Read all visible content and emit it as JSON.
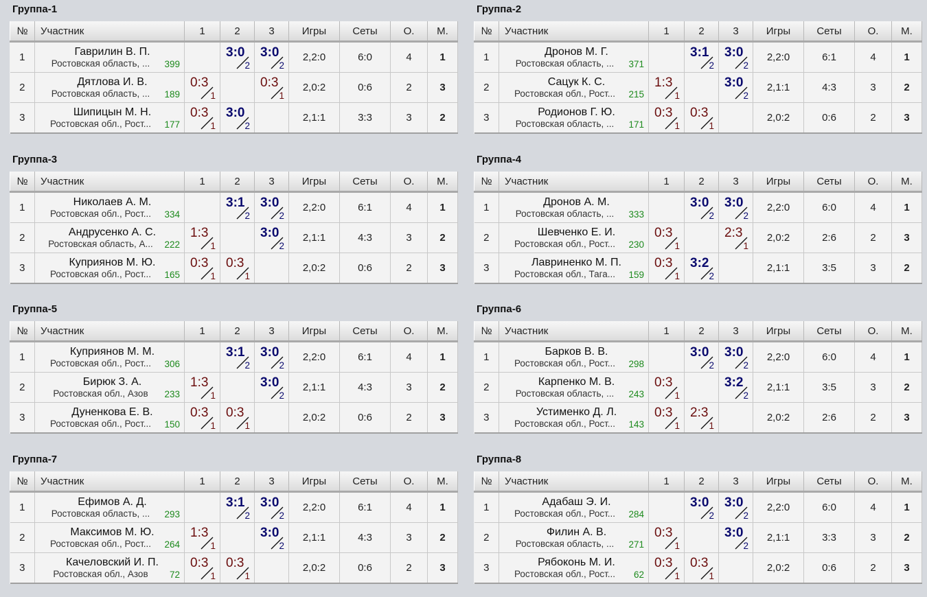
{
  "headers": {
    "num": "№",
    "player": "Участник",
    "c1": "1",
    "c2": "2",
    "c3": "3",
    "games": "Игры",
    "sets": "Сеты",
    "points": "О.",
    "place": "М."
  },
  "groups": [
    {
      "title": "Группа-1",
      "rows": [
        {
          "num": "1",
          "name": "Гаврилин В. П.",
          "region": "Ростовская область, ...",
          "rating": "399",
          "results": [
            null,
            {
              "s": "3:0",
              "p": "2",
              "w": true
            },
            {
              "s": "3:0",
              "p": "2",
              "w": true
            }
          ],
          "games": "2,2:0",
          "sets": "6:0",
          "points": "4",
          "place": "1"
        },
        {
          "num": "2",
          "name": "Дятлова И. В.",
          "region": "Ростовская область, ...",
          "rating": "189",
          "results": [
            {
              "s": "0:3",
              "p": "1",
              "w": false
            },
            null,
            {
              "s": "0:3",
              "p": "1",
              "w": false
            }
          ],
          "games": "2,0:2",
          "sets": "0:6",
          "points": "2",
          "place": "3"
        },
        {
          "num": "3",
          "name": "Шипицын М. Н.",
          "region": "Ростовская обл., Рост...",
          "rating": "177",
          "results": [
            {
              "s": "0:3",
              "p": "1",
              "w": false
            },
            {
              "s": "3:0",
              "p": "2",
              "w": true
            },
            null
          ],
          "games": "2,1:1",
          "sets": "3:3",
          "points": "3",
          "place": "2"
        }
      ]
    },
    {
      "title": "Группа-2",
      "rows": [
        {
          "num": "1",
          "name": "Дронов М. Г.",
          "region": "Ростовская область, ...",
          "rating": "371",
          "results": [
            null,
            {
              "s": "3:1",
              "p": "2",
              "w": true
            },
            {
              "s": "3:0",
              "p": "2",
              "w": true
            }
          ],
          "games": "2,2:0",
          "sets": "6:1",
          "points": "4",
          "place": "1"
        },
        {
          "num": "2",
          "name": "Сацук К. С.",
          "region": "Ростовская обл., Рост...",
          "rating": "215",
          "results": [
            {
              "s": "1:3",
              "p": "1",
              "w": false
            },
            null,
            {
              "s": "3:0",
              "p": "2",
              "w": true
            }
          ],
          "games": "2,1:1",
          "sets": "4:3",
          "points": "3",
          "place": "2"
        },
        {
          "num": "3",
          "name": "Родионов Г. Ю.",
          "region": "Ростовская область, ...",
          "rating": "171",
          "results": [
            {
              "s": "0:3",
              "p": "1",
              "w": false
            },
            {
              "s": "0:3",
              "p": "1",
              "w": false
            },
            null
          ],
          "games": "2,0:2",
          "sets": "0:6",
          "points": "2",
          "place": "3"
        }
      ]
    },
    {
      "title": "Группа-3",
      "rows": [
        {
          "num": "1",
          "name": "Николаев А. М.",
          "region": "Ростовская обл., Рост...",
          "rating": "334",
          "results": [
            null,
            {
              "s": "3:1",
              "p": "2",
              "w": true
            },
            {
              "s": "3:0",
              "p": "2",
              "w": true
            }
          ],
          "games": "2,2:0",
          "sets": "6:1",
          "points": "4",
          "place": "1"
        },
        {
          "num": "2",
          "name": "Андрусенко А. С.",
          "region": "Ростовская область, А...",
          "rating": "222",
          "results": [
            {
              "s": "1:3",
              "p": "1",
              "w": false
            },
            null,
            {
              "s": "3:0",
              "p": "2",
              "w": true
            }
          ],
          "games": "2,1:1",
          "sets": "4:3",
          "points": "3",
          "place": "2"
        },
        {
          "num": "3",
          "name": "Куприянов М. Ю.",
          "region": "Ростовская обл., Рост...",
          "rating": "165",
          "results": [
            {
              "s": "0:3",
              "p": "1",
              "w": false
            },
            {
              "s": "0:3",
              "p": "1",
              "w": false
            },
            null
          ],
          "games": "2,0:2",
          "sets": "0:6",
          "points": "2",
          "place": "3"
        }
      ]
    },
    {
      "title": "Группа-4",
      "rows": [
        {
          "num": "1",
          "name": "Дронов А. М.",
          "region": "Ростовская область, ...",
          "rating": "333",
          "results": [
            null,
            {
              "s": "3:0",
              "p": "2",
              "w": true
            },
            {
              "s": "3:0",
              "p": "2",
              "w": true
            }
          ],
          "games": "2,2:0",
          "sets": "6:0",
          "points": "4",
          "place": "1"
        },
        {
          "num": "2",
          "name": "Шевченко Е. И.",
          "region": "Ростовская обл., Рост...",
          "rating": "230",
          "results": [
            {
              "s": "0:3",
              "p": "1",
              "w": false
            },
            null,
            {
              "s": "2:3",
              "p": "1",
              "w": false
            }
          ],
          "games": "2,0:2",
          "sets": "2:6",
          "points": "2",
          "place": "3"
        },
        {
          "num": "3",
          "name": "Лавриненко М. П.",
          "region": "Ростовская обл., Тага...",
          "rating": "159",
          "results": [
            {
              "s": "0:3",
              "p": "1",
              "w": false
            },
            {
              "s": "3:2",
              "p": "2",
              "w": true
            },
            null
          ],
          "games": "2,1:1",
          "sets": "3:5",
          "points": "3",
          "place": "2"
        }
      ]
    },
    {
      "title": "Группа-5",
      "rows": [
        {
          "num": "1",
          "name": "Куприянов М. М.",
          "region": "Ростовская обл., Рост...",
          "rating": "306",
          "results": [
            null,
            {
              "s": "3:1",
              "p": "2",
              "w": true
            },
            {
              "s": "3:0",
              "p": "2",
              "w": true
            }
          ],
          "games": "2,2:0",
          "sets": "6:1",
          "points": "4",
          "place": "1"
        },
        {
          "num": "2",
          "name": "Бирюк З. А.",
          "region": "Ростовская обл., Азов",
          "rating": "233",
          "results": [
            {
              "s": "1:3",
              "p": "1",
              "w": false
            },
            null,
            {
              "s": "3:0",
              "p": "2",
              "w": true
            }
          ],
          "games": "2,1:1",
          "sets": "4:3",
          "points": "3",
          "place": "2"
        },
        {
          "num": "3",
          "name": "Дуненкова Е. В.",
          "region": "Ростовская обл., Рост...",
          "rating": "150",
          "results": [
            {
              "s": "0:3",
              "p": "1",
              "w": false
            },
            {
              "s": "0:3",
              "p": "1",
              "w": false
            },
            null
          ],
          "games": "2,0:2",
          "sets": "0:6",
          "points": "2",
          "place": "3"
        }
      ]
    },
    {
      "title": "Группа-6",
      "rows": [
        {
          "num": "1",
          "name": "Барков В. В.",
          "region": "Ростовская обл., Рост...",
          "rating": "298",
          "results": [
            null,
            {
              "s": "3:0",
              "p": "2",
              "w": true
            },
            {
              "s": "3:0",
              "p": "2",
              "w": true
            }
          ],
          "games": "2,2:0",
          "sets": "6:0",
          "points": "4",
          "place": "1"
        },
        {
          "num": "2",
          "name": "Карпенко М. В.",
          "region": "Ростовская область, ...",
          "rating": "243",
          "results": [
            {
              "s": "0:3",
              "p": "1",
              "w": false
            },
            null,
            {
              "s": "3:2",
              "p": "2",
              "w": true
            }
          ],
          "games": "2,1:1",
          "sets": "3:5",
          "points": "3",
          "place": "2"
        },
        {
          "num": "3",
          "name": "Устименко Д. Л.",
          "region": "Ростовская обл., Рост...",
          "rating": "143",
          "results": [
            {
              "s": "0:3",
              "p": "1",
              "w": false
            },
            {
              "s": "2:3",
              "p": "1",
              "w": false
            },
            null
          ],
          "games": "2,0:2",
          "sets": "2:6",
          "points": "2",
          "place": "3"
        }
      ]
    },
    {
      "title": "Группа-7",
      "rows": [
        {
          "num": "1",
          "name": "Ефимов А. Д.",
          "region": "Ростовская область, ...",
          "rating": "293",
          "results": [
            null,
            {
              "s": "3:1",
              "p": "2",
              "w": true
            },
            {
              "s": "3:0",
              "p": "2",
              "w": true
            }
          ],
          "games": "2,2:0",
          "sets": "6:1",
          "points": "4",
          "place": "1"
        },
        {
          "num": "2",
          "name": "Максимов М. Ю.",
          "region": "Ростовская обл., Рост...",
          "rating": "264",
          "results": [
            {
              "s": "1:3",
              "p": "1",
              "w": false
            },
            null,
            {
              "s": "3:0",
              "p": "2",
              "w": true
            }
          ],
          "games": "2,1:1",
          "sets": "4:3",
          "points": "3",
          "place": "2"
        },
        {
          "num": "3",
          "name": "Качеловский И. П.",
          "region": "Ростовская обл., Азов",
          "rating": "72",
          "results": [
            {
              "s": "0:3",
              "p": "1",
              "w": false
            },
            {
              "s": "0:3",
              "p": "1",
              "w": false
            },
            null
          ],
          "games": "2,0:2",
          "sets": "0:6",
          "points": "2",
          "place": "3"
        }
      ]
    },
    {
      "title": "Группа-8",
      "rows": [
        {
          "num": "1",
          "name": "Адабаш Э. И.",
          "region": "Ростовская обл., Рост...",
          "rating": "284",
          "results": [
            null,
            {
              "s": "3:0",
              "p": "2",
              "w": true
            },
            {
              "s": "3:0",
              "p": "2",
              "w": true
            }
          ],
          "games": "2,2:0",
          "sets": "6:0",
          "points": "4",
          "place": "1"
        },
        {
          "num": "2",
          "name": "Филин А. В.",
          "region": "Ростовская область, ...",
          "rating": "271",
          "results": [
            {
              "s": "0:3",
              "p": "1",
              "w": false
            },
            null,
            {
              "s": "3:0",
              "p": "2",
              "w": true
            }
          ],
          "games": "2,1:1",
          "sets": "3:3",
          "points": "3",
          "place": "2"
        },
        {
          "num": "3",
          "name": "Рябоконь М. И.",
          "region": "Ростовская обл., Рост...",
          "rating": "62",
          "results": [
            {
              "s": "0:3",
              "p": "1",
              "w": false
            },
            {
              "s": "0:3",
              "p": "1",
              "w": false
            },
            null
          ],
          "games": "2,0:2",
          "sets": "0:6",
          "points": "2",
          "place": "3"
        }
      ]
    }
  ]
}
